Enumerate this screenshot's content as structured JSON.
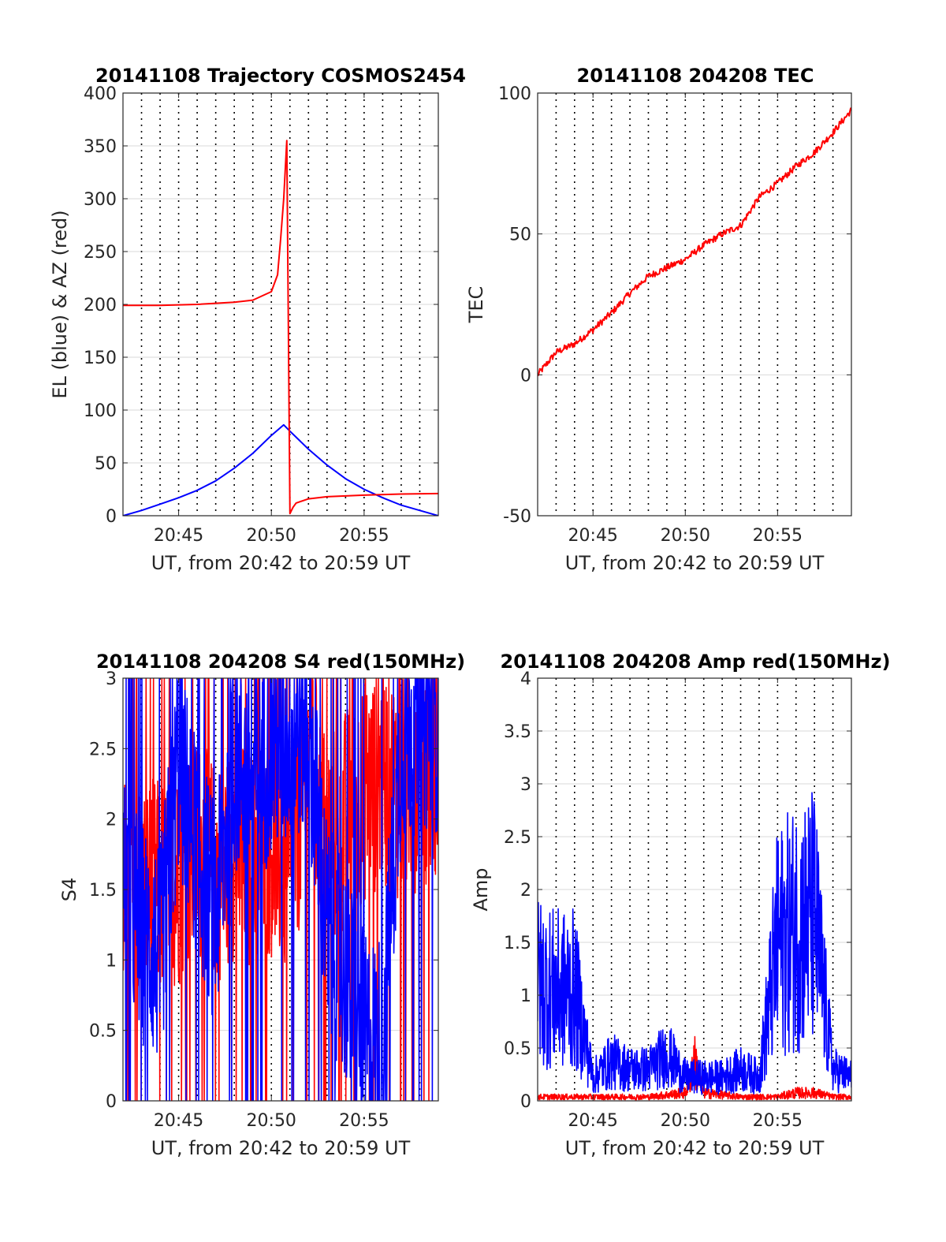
{
  "figure": {
    "colors": {
      "el": "#0000ff",
      "az": "#ff0000",
      "red": "#ff0000",
      "blue": "#0000ff",
      "grid": "#d9d9d9",
      "vline": "#000000"
    }
  },
  "chart_data": [
    {
      "id": "trajectory",
      "type": "line",
      "title": "20141108 Trajectory COSMOS2454",
      "xlabel": "UT, from 20:42 to 20:59 UT",
      "ylabel": "EL (blue) & AZ (red)",
      "xlim": [
        "20:42",
        "20:59"
      ],
      "ylim": [
        0,
        400
      ],
      "xticks": [
        "20:45",
        "20:50",
        "20:55"
      ],
      "yticks": [
        "0",
        "50",
        "100",
        "150",
        "200",
        "250",
        "300",
        "350",
        "400"
      ],
      "grid": true,
      "series": [
        {
          "label": "EL (blue)",
          "color": "blue",
          "x": [
            "20:42",
            "20:43",
            "20:44",
            "20:45",
            "20:46",
            "20:47",
            "20:48",
            "20:49",
            "20:50",
            "20:50:40",
            "20:51",
            "20:52",
            "20:53",
            "20:54",
            "20:55",
            "20:56",
            "20:57",
            "20:58",
            "20:59"
          ],
          "y": [
            0,
            5,
            11,
            17,
            24,
            33,
            45,
            59,
            76,
            86,
            80,
            63,
            48,
            35,
            25,
            17,
            10,
            5,
            0
          ]
        },
        {
          "label": "AZ (red)",
          "color": "red",
          "x": [
            "20:42",
            "20:44",
            "20:46",
            "20:48",
            "20:49",
            "20:50",
            "20:50:20",
            "20:50:30",
            "20:50:40",
            "20:50:50",
            "20:51",
            "20:51:10",
            "20:51:20",
            "20:52",
            "20:53",
            "20:55",
            "20:57",
            "20:59"
          ],
          "y": [
            199,
            199,
            200,
            202,
            204,
            212,
            228,
            262,
            300,
            355,
            2,
            8,
            12,
            16,
            18,
            19.5,
            20.5,
            21
          ]
        }
      ]
    },
    {
      "id": "tec",
      "type": "line",
      "title": "20141108 204208 TEC",
      "xlabel": "UT, from 20:42 to 20:59 UT",
      "ylabel": "TEC",
      "xlim": [
        "20:42",
        "20:59"
      ],
      "ylim": [
        -50,
        100
      ],
      "xticks": [
        "20:45",
        "20:50",
        "20:55"
      ],
      "yticks": [
        "-50",
        "0",
        "50",
        "100"
      ],
      "grid": true,
      "series": [
        {
          "label": "TEC",
          "color": "red",
          "x": [
            "20:42",
            "20:43",
            "20:44",
            "20:45",
            "20:46",
            "20:47",
            "20:48",
            "20:49",
            "20:50",
            "20:51",
            "20:52",
            "20:53",
            "20:54",
            "20:55",
            "20:56",
            "20:57",
            "20:58",
            "20:59"
          ],
          "y": [
            0,
            8,
            11,
            16,
            22,
            29,
            35,
            38,
            41,
            46,
            50,
            53,
            63,
            68,
            74,
            79,
            86,
            94
          ]
        }
      ]
    },
    {
      "id": "s4",
      "type": "line",
      "title": "20141108 204208 S4 red(150MHz)",
      "xlabel": "UT, from 20:42 to 20:59 UT",
      "ylabel": "S4",
      "xlim": [
        "20:42",
        "20:59"
      ],
      "ylim": [
        0,
        3
      ],
      "xticks": [
        "20:45",
        "20:50",
        "20:55"
      ],
      "yticks": [
        "0",
        "0.5",
        "1",
        "1.5",
        "2",
        "2.5",
        "3"
      ],
      "grid": true,
      "series": [
        {
          "label": "red",
          "color": "red",
          "noisy": true,
          "x": [
            "20:42",
            "20:43",
            "20:44",
            "20:45",
            "20:46",
            "20:47",
            "20:48",
            "20:49",
            "20:50",
            "20:51",
            "20:52",
            "20:53",
            "20:54",
            "20:55",
            "20:56",
            "20:57",
            "20:58",
            "20:59"
          ],
          "y": [
            1.5,
            1.5,
            1.5,
            1.6,
            1.8,
            1.6,
            1.8,
            1.7,
            1.8,
            1.6,
            2.4,
            1.8,
            2.0,
            2.2,
            2.3,
            2.2,
            2.3,
            2.4
          ]
        },
        {
          "label": "blue",
          "color": "blue",
          "noisy": true,
          "x": [
            "20:42",
            "20:43",
            "20:44",
            "20:45",
            "20:46",
            "20:47",
            "20:48",
            "20:49",
            "20:50",
            "20:51",
            "20:52",
            "20:53",
            "20:54",
            "20:55",
            "20:56",
            "20:57",
            "20:58",
            "20:59"
          ],
          "y": [
            1.6,
            1.2,
            1.0,
            2.4,
            1.8,
            1.3,
            2.4,
            2.3,
            2.5,
            2.6,
            2.7,
            1.2,
            0.9,
            0.4,
            0.4,
            2.6,
            2.7,
            2.7
          ]
        }
      ]
    },
    {
      "id": "amp",
      "type": "line",
      "title": "20141108 204208 Amp red(150MHz)",
      "xlabel": "UT, from 20:42 to 20:59 UT",
      "ylabel": "Amp",
      "xlim": [
        "20:42",
        "20:59"
      ],
      "ylim": [
        0,
        4
      ],
      "xticks": [
        "20:45",
        "20:50",
        "20:55"
      ],
      "yticks": [
        "0",
        "0.5",
        "1",
        "1.5",
        "2",
        "2.5",
        "3",
        "3.5",
        "4"
      ],
      "grid": true,
      "series": [
        {
          "label": "red",
          "color": "red",
          "noisy": true,
          "x": [
            "20:42",
            "20:44",
            "20:46",
            "20:48",
            "20:50",
            "20:50:30",
            "20:51",
            "20:53",
            "20:55",
            "20:56",
            "20:57",
            "20:58",
            "20:59"
          ],
          "y": [
            0.05,
            0.05,
            0.05,
            0.05,
            0.1,
            0.5,
            0.1,
            0.05,
            0.05,
            0.1,
            0.1,
            0.05,
            0.05
          ]
        },
        {
          "label": "blue",
          "color": "blue",
          "noisy": true,
          "x": [
            "20:42",
            "20:43",
            "20:44",
            "20:45",
            "20:46",
            "20:47",
            "20:48",
            "20:49",
            "20:50",
            "20:51",
            "20:52",
            "20:53",
            "20:54",
            "20:55",
            "20:56",
            "20:57",
            "20:58",
            "20:59"
          ],
          "y": [
            1.5,
            1.4,
            1.4,
            0.3,
            0.5,
            0.4,
            0.4,
            0.6,
            0.3,
            0.3,
            0.3,
            0.4,
            0.3,
            2.0,
            2.2,
            2.3,
            0.4,
            0.3
          ]
        }
      ]
    }
  ]
}
